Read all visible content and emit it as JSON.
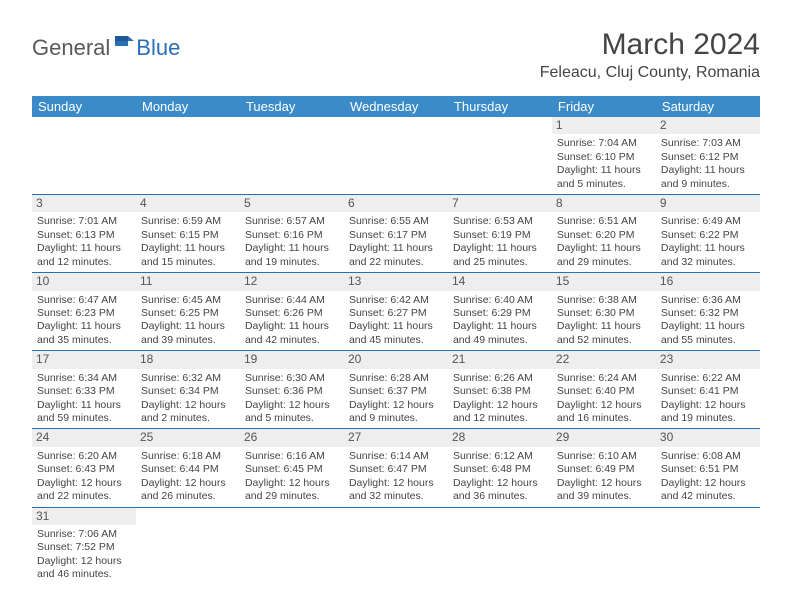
{
  "logo": {
    "text1": "General",
    "text2": "Blue"
  },
  "title": "March 2024",
  "location": "Feleacu, Cluj County, Romania",
  "colors": {
    "header_bg": "#3b8bc8",
    "header_text": "#ffffff",
    "accent_border": "#2a6fb5",
    "daynum_bg": "#eeeeee",
    "text": "#454545"
  },
  "layout": {
    "first_day_column": 5,
    "num_days": 31
  },
  "day_names": [
    "Sunday",
    "Monday",
    "Tuesday",
    "Wednesday",
    "Thursday",
    "Friday",
    "Saturday"
  ],
  "days": [
    {
      "n": 1,
      "sunrise": "7:04 AM",
      "sunset": "6:10 PM",
      "dl": "11 hours and 5 minutes."
    },
    {
      "n": 2,
      "sunrise": "7:03 AM",
      "sunset": "6:12 PM",
      "dl": "11 hours and 9 minutes."
    },
    {
      "n": 3,
      "sunrise": "7:01 AM",
      "sunset": "6:13 PM",
      "dl": "11 hours and 12 minutes."
    },
    {
      "n": 4,
      "sunrise": "6:59 AM",
      "sunset": "6:15 PM",
      "dl": "11 hours and 15 minutes."
    },
    {
      "n": 5,
      "sunrise": "6:57 AM",
      "sunset": "6:16 PM",
      "dl": "11 hours and 19 minutes."
    },
    {
      "n": 6,
      "sunrise": "6:55 AM",
      "sunset": "6:17 PM",
      "dl": "11 hours and 22 minutes."
    },
    {
      "n": 7,
      "sunrise": "6:53 AM",
      "sunset": "6:19 PM",
      "dl": "11 hours and 25 minutes."
    },
    {
      "n": 8,
      "sunrise": "6:51 AM",
      "sunset": "6:20 PM",
      "dl": "11 hours and 29 minutes."
    },
    {
      "n": 9,
      "sunrise": "6:49 AM",
      "sunset": "6:22 PM",
      "dl": "11 hours and 32 minutes."
    },
    {
      "n": 10,
      "sunrise": "6:47 AM",
      "sunset": "6:23 PM",
      "dl": "11 hours and 35 minutes."
    },
    {
      "n": 11,
      "sunrise": "6:45 AM",
      "sunset": "6:25 PM",
      "dl": "11 hours and 39 minutes."
    },
    {
      "n": 12,
      "sunrise": "6:44 AM",
      "sunset": "6:26 PM",
      "dl": "11 hours and 42 minutes."
    },
    {
      "n": 13,
      "sunrise": "6:42 AM",
      "sunset": "6:27 PM",
      "dl": "11 hours and 45 minutes."
    },
    {
      "n": 14,
      "sunrise": "6:40 AM",
      "sunset": "6:29 PM",
      "dl": "11 hours and 49 minutes."
    },
    {
      "n": 15,
      "sunrise": "6:38 AM",
      "sunset": "6:30 PM",
      "dl": "11 hours and 52 minutes."
    },
    {
      "n": 16,
      "sunrise": "6:36 AM",
      "sunset": "6:32 PM",
      "dl": "11 hours and 55 minutes."
    },
    {
      "n": 17,
      "sunrise": "6:34 AM",
      "sunset": "6:33 PM",
      "dl": "11 hours and 59 minutes."
    },
    {
      "n": 18,
      "sunrise": "6:32 AM",
      "sunset": "6:34 PM",
      "dl": "12 hours and 2 minutes."
    },
    {
      "n": 19,
      "sunrise": "6:30 AM",
      "sunset": "6:36 PM",
      "dl": "12 hours and 5 minutes."
    },
    {
      "n": 20,
      "sunrise": "6:28 AM",
      "sunset": "6:37 PM",
      "dl": "12 hours and 9 minutes."
    },
    {
      "n": 21,
      "sunrise": "6:26 AM",
      "sunset": "6:38 PM",
      "dl": "12 hours and 12 minutes."
    },
    {
      "n": 22,
      "sunrise": "6:24 AM",
      "sunset": "6:40 PM",
      "dl": "12 hours and 16 minutes."
    },
    {
      "n": 23,
      "sunrise": "6:22 AM",
      "sunset": "6:41 PM",
      "dl": "12 hours and 19 minutes."
    },
    {
      "n": 24,
      "sunrise": "6:20 AM",
      "sunset": "6:43 PM",
      "dl": "12 hours and 22 minutes."
    },
    {
      "n": 25,
      "sunrise": "6:18 AM",
      "sunset": "6:44 PM",
      "dl": "12 hours and 26 minutes."
    },
    {
      "n": 26,
      "sunrise": "6:16 AM",
      "sunset": "6:45 PM",
      "dl": "12 hours and 29 minutes."
    },
    {
      "n": 27,
      "sunrise": "6:14 AM",
      "sunset": "6:47 PM",
      "dl": "12 hours and 32 minutes."
    },
    {
      "n": 28,
      "sunrise": "6:12 AM",
      "sunset": "6:48 PM",
      "dl": "12 hours and 36 minutes."
    },
    {
      "n": 29,
      "sunrise": "6:10 AM",
      "sunset": "6:49 PM",
      "dl": "12 hours and 39 minutes."
    },
    {
      "n": 30,
      "sunrise": "6:08 AM",
      "sunset": "6:51 PM",
      "dl": "12 hours and 42 minutes."
    },
    {
      "n": 31,
      "sunrise": "7:06 AM",
      "sunset": "7:52 PM",
      "dl": "12 hours and 46 minutes."
    }
  ],
  "labels": {
    "sunrise": "Sunrise: ",
    "sunset": "Sunset: ",
    "daylight": "Daylight: "
  }
}
